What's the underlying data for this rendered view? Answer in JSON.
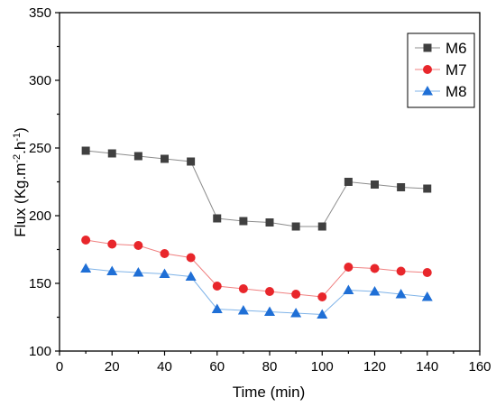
{
  "chart_data": {
    "type": "line",
    "xlabel": "Time (min)",
    "ylabel": "Flux (Kg.m-2.h-1)",
    "ylabel_parts": {
      "base": "Flux (Kg.m",
      "sup1": "-2",
      "mid": ".h",
      "sup2": "-1",
      "end": ")"
    },
    "xlim": [
      0,
      160
    ],
    "ylim": [
      100,
      350
    ],
    "xticks": [
      0,
      20,
      40,
      60,
      80,
      100,
      120,
      140,
      160
    ],
    "yticks": [
      100,
      150,
      200,
      250,
      300,
      350
    ],
    "grid": false,
    "legend": "top-right",
    "x": [
      10,
      20,
      30,
      40,
      50,
      60,
      70,
      80,
      90,
      100,
      110,
      120,
      130,
      140
    ],
    "series": [
      {
        "name": "M6",
        "marker": "square",
        "color": "#404040",
        "line_color": "#8c8c8c",
        "values": [
          248,
          246,
          244,
          242,
          240,
          198,
          196,
          195,
          192,
          192,
          225,
          223,
          221,
          220
        ]
      },
      {
        "name": "M7",
        "marker": "circle",
        "color": "#e8262b",
        "line_color": "#f08080",
        "values": [
          182,
          179,
          178,
          172,
          169,
          148,
          146,
          144,
          142,
          140,
          162,
          161,
          159,
          158
        ]
      },
      {
        "name": "M8",
        "marker": "triangle",
        "color": "#1f6fd6",
        "line_color": "#7fb3e8",
        "values": [
          161,
          159,
          158,
          157,
          155,
          131,
          130,
          129,
          128,
          127,
          145,
          144,
          142,
          140
        ]
      }
    ]
  }
}
